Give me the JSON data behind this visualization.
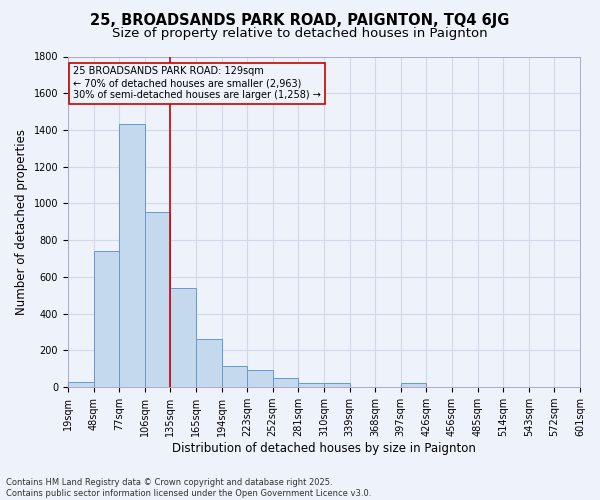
{
  "title1": "25, BROADSANDS PARK ROAD, PAIGNTON, TQ4 6JG",
  "title2": "Size of property relative to detached houses in Paignton",
  "xlabel": "Distribution of detached houses by size in Paignton",
  "ylabel": "Number of detached properties",
  "footnote1": "Contains HM Land Registry data © Crown copyright and database right 2025.",
  "footnote2": "Contains public sector information licensed under the Open Government Licence v3.0.",
  "annotation_line1": "25 BROADSANDS PARK ROAD: 129sqm",
  "annotation_line2": "← 70% of detached houses are smaller (2,963)",
  "annotation_line3": "30% of semi-detached houses are larger (1,258) →",
  "bar_heights": [
    30,
    740,
    1435,
    955,
    540,
    265,
    115,
    95,
    50,
    25,
    25,
    0,
    0,
    25,
    0,
    0,
    0,
    0,
    0,
    0
  ],
  "categories": [
    "19sqm",
    "48sqm",
    "77sqm",
    "106sqm",
    "135sqm",
    "165sqm",
    "194sqm",
    "223sqm",
    "252sqm",
    "281sqm",
    "310sqm",
    "339sqm",
    "368sqm",
    "397sqm",
    "426sqm",
    "456sqm",
    "485sqm",
    "514sqm",
    "543sqm",
    "572sqm",
    "601sqm"
  ],
  "property_line_x": 4,
  "bar_color": "#c5d9ee",
  "bar_edge_color": "#6699cc",
  "line_color": "#cc0000",
  "ylim": [
    0,
    1800
  ],
  "yticks": [
    0,
    200,
    400,
    600,
    800,
    1000,
    1200,
    1400,
    1600,
    1800
  ],
  "background_color": "#eef2fa",
  "grid_color": "#d0d8ea",
  "title_fontsize": 10.5,
  "subtitle_fontsize": 9.5,
  "axis_label_fontsize": 8.5,
  "tick_fontsize": 7,
  "annotation_fontsize": 7,
  "footnote_fontsize": 6
}
